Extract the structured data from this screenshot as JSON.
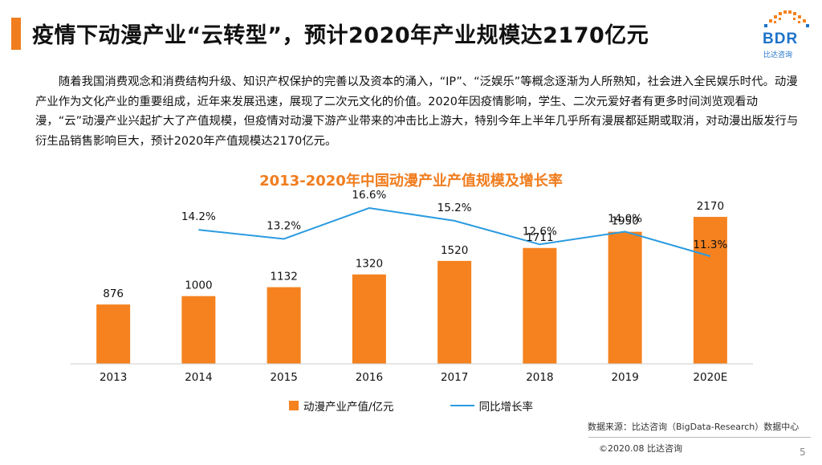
{
  "header": {
    "title": "疫情下动漫产业“云转型”，预计2020年产业规模达2170亿元"
  },
  "logo": {
    "text": "BDR",
    "subtitle": "比达咨询"
  },
  "body_text": "随着我国消费观念和消费结构升级、知识产权保护的完善以及资本的涌入，“IP”、“泛娱乐”等概念逐渐为人所熟知，社会进入全民娱乐时代。动漫产业作为文化产业的重要组成，近年来发展迅速，展现了二次元文化的价值。2020年因疫情影响，学生、二次元爱好者有更多时间浏览观看动漫，“云”动漫产业兴起扩大了产值规模，但疫情对动漫下游产业带来的冲击比上游大，特别今年上半年几乎所有漫展都延期或取消，对动漫出版发行与衍生品销售影响巨大，预计2020年产值规模达2170亿元。",
  "chart_data": {
    "type": "bar",
    "title": "2013-2020年中国动漫产业产值规模及增长率",
    "categories": [
      "2013",
      "2014",
      "2015",
      "2016",
      "2017",
      "2018",
      "2019",
      "2020E"
    ],
    "series": [
      {
        "name": "动漫产业产值/亿元",
        "type": "bar",
        "values": [
          876,
          1000,
          1132,
          1320,
          1520,
          1711,
          1950,
          2170
        ],
        "labels": [
          "876",
          "1000",
          "1132",
          "1320",
          "1520",
          "1711",
          "1950",
          "2170"
        ],
        "color": "#f5821f"
      },
      {
        "name": "同比增长率",
        "type": "line",
        "x": [
          "2014",
          "2015",
          "2016",
          "2017",
          "2018",
          "2019",
          "2020E"
        ],
        "values": [
          14.2,
          13.2,
          16.6,
          15.2,
          12.6,
          14.0,
          11.3
        ],
        "labels": [
          "14.2%",
          "13.2%",
          "16.6%",
          "15.2%",
          "12.6%",
          "14.0%",
          "11.3%"
        ],
        "color": "#2b9be0"
      }
    ],
    "xlabel": "",
    "ylabel": "",
    "legend": "bottom",
    "grid": false
  },
  "source": "数据来源：比达咨询（BigData-Research）数据中心",
  "copyright": "©2020.08   比达咨询",
  "page_number": "5",
  "colors": {
    "accent": "#f07d1e",
    "bar": "#f5821f",
    "line": "#2b9be0",
    "brand": "#1e73c8"
  }
}
